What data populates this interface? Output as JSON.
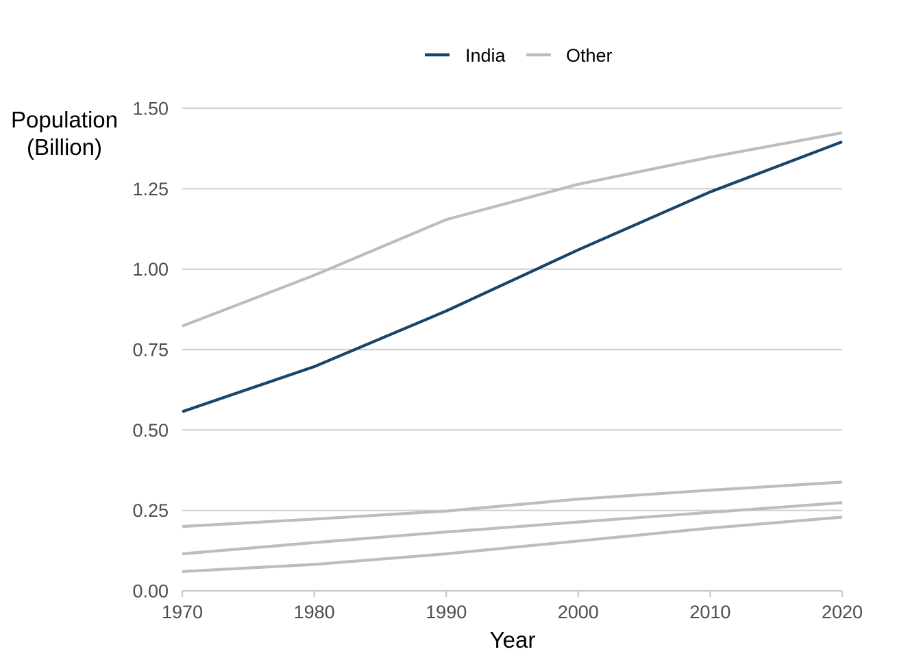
{
  "chart_data": {
    "type": "line",
    "xlabel": "Year",
    "ylabel_lines": [
      "Population",
      "(Billion)"
    ],
    "x": [
      1970,
      1980,
      1990,
      2000,
      2010,
      2020
    ],
    "xlim": [
      1970,
      2020
    ],
    "ylim": [
      0,
      1.5
    ],
    "xticks": [
      "1970",
      "1980",
      "1990",
      "2000",
      "2010",
      "2020"
    ],
    "yticks": [
      "0.00",
      "0.25",
      "0.50",
      "0.75",
      "1.00",
      "1.25",
      "1.50"
    ],
    "grid": true,
    "legend_position": "top",
    "legend": [
      {
        "label": "India",
        "color": "#1a4468"
      },
      {
        "label": "Other",
        "color": "#bdbdbd"
      }
    ],
    "series": [
      {
        "group": "Other",
        "values": [
          0.823,
          0.981,
          1.154,
          1.264,
          1.348,
          1.424
        ]
      },
      {
        "group": "Other",
        "values": [
          0.2,
          0.223,
          0.248,
          0.285,
          0.313,
          0.338
        ]
      },
      {
        "group": "Other",
        "values": [
          0.115,
          0.15,
          0.183,
          0.214,
          0.244,
          0.274
        ]
      },
      {
        "group": "Other",
        "values": [
          0.06,
          0.082,
          0.115,
          0.155,
          0.195,
          0.229
        ]
      },
      {
        "group": "India",
        "values": [
          0.557,
          0.697,
          0.87,
          1.06,
          1.24,
          1.396
        ]
      }
    ]
  }
}
